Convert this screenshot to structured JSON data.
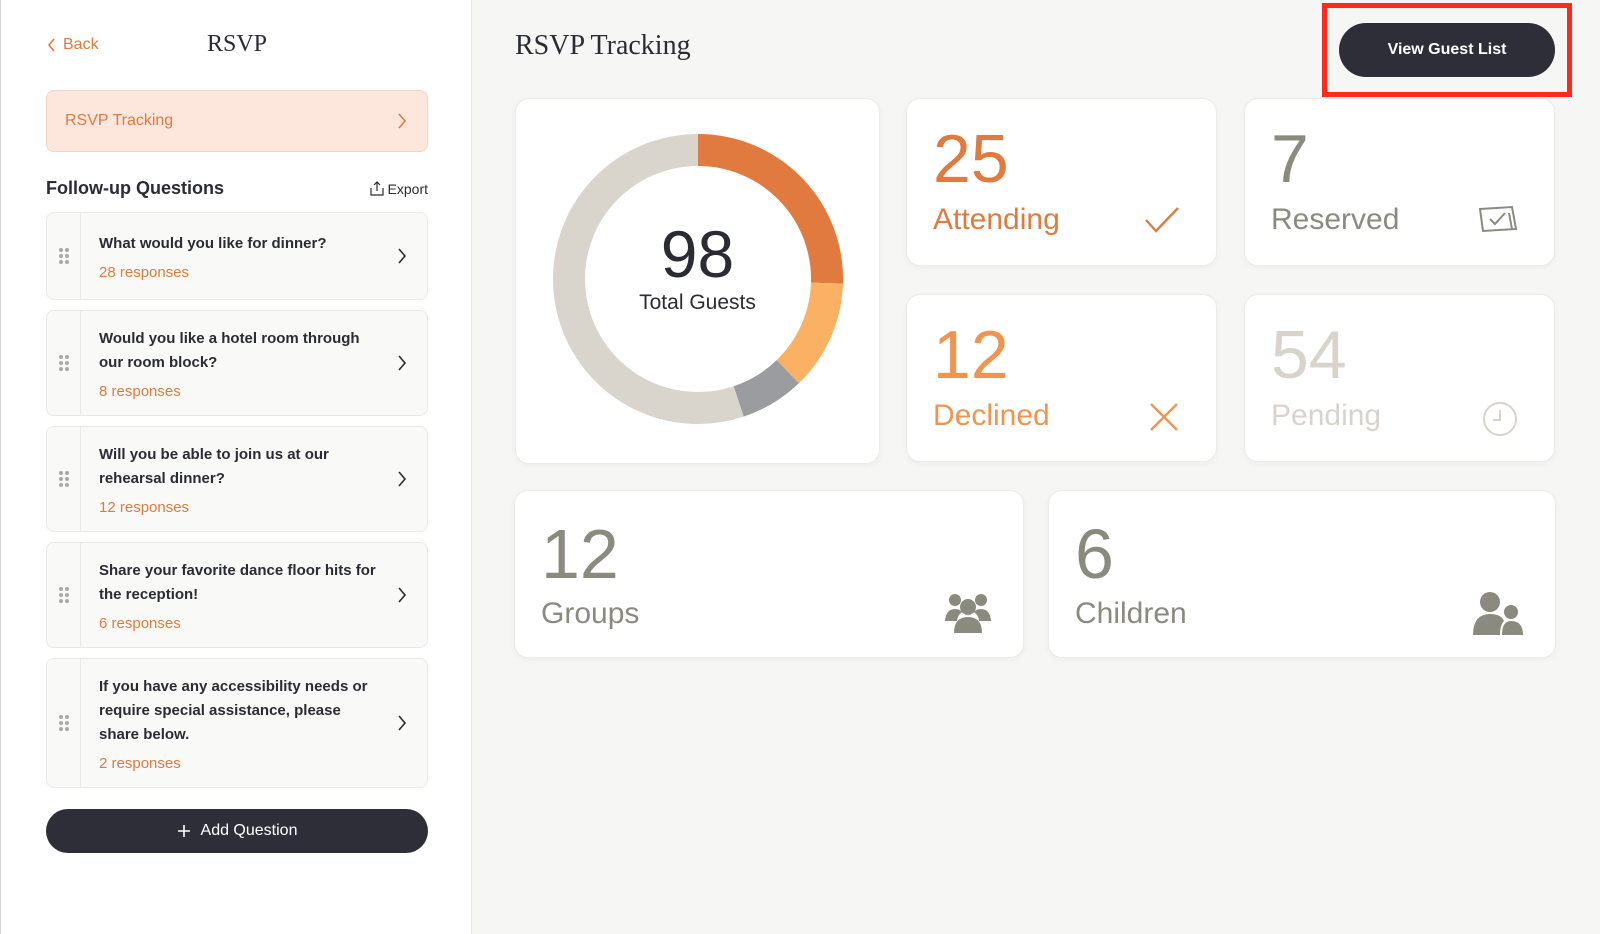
{
  "sidebar": {
    "back_label": "Back",
    "title": "RSVP",
    "active_item": "RSVP Tracking",
    "followup_title": "Follow-up Questions",
    "export_label": "Export",
    "questions": [
      {
        "label": "What would you like for dinner?",
        "count": "28 responses"
      },
      {
        "label": "Would you like a hotel room through our room block?",
        "count": "8 responses"
      },
      {
        "label": "Will you be able to join us at our rehearsal dinner?",
        "count": "12 responses"
      },
      {
        "label": "Share your favorite dance floor hits for the reception!",
        "count": "6 responses"
      },
      {
        "label": "If you have any accessibility needs or require special assistance, please share below.",
        "count": "2 responses"
      }
    ],
    "add_question_label": "Add Question"
  },
  "main": {
    "title": "RSVP Tracking",
    "view_guest_list_label": "View Guest List",
    "total": {
      "value": "98",
      "label": "Total Guests"
    },
    "stats": [
      {
        "value": "25",
        "label": "Attending",
        "icon": "check-icon",
        "color": "#e07a3f"
      },
      {
        "value": "7",
        "label": "Reserved",
        "icon": "reserved-icon",
        "color": "#8b8a7e"
      },
      {
        "value": "12",
        "label": "Declined",
        "icon": "x-icon",
        "color": "#f0944f"
      },
      {
        "value": "54",
        "label": "Pending",
        "icon": "clock-icon",
        "color": "#d8d4cb"
      }
    ],
    "groups": {
      "value": "12",
      "label": "Groups",
      "icon": "group-icon"
    },
    "children": {
      "value": "6",
      "label": "Children",
      "icon": "children-icon"
    }
  },
  "chart_data": {
    "type": "pie",
    "categories": [
      "Attending",
      "Declined",
      "Reserved",
      "Pending"
    ],
    "values": [
      25,
      12,
      7,
      54
    ],
    "colors": [
      "#e07a3f",
      "#fbb164",
      "#9a9c9f",
      "#d9d5cc"
    ],
    "title": ""
  }
}
